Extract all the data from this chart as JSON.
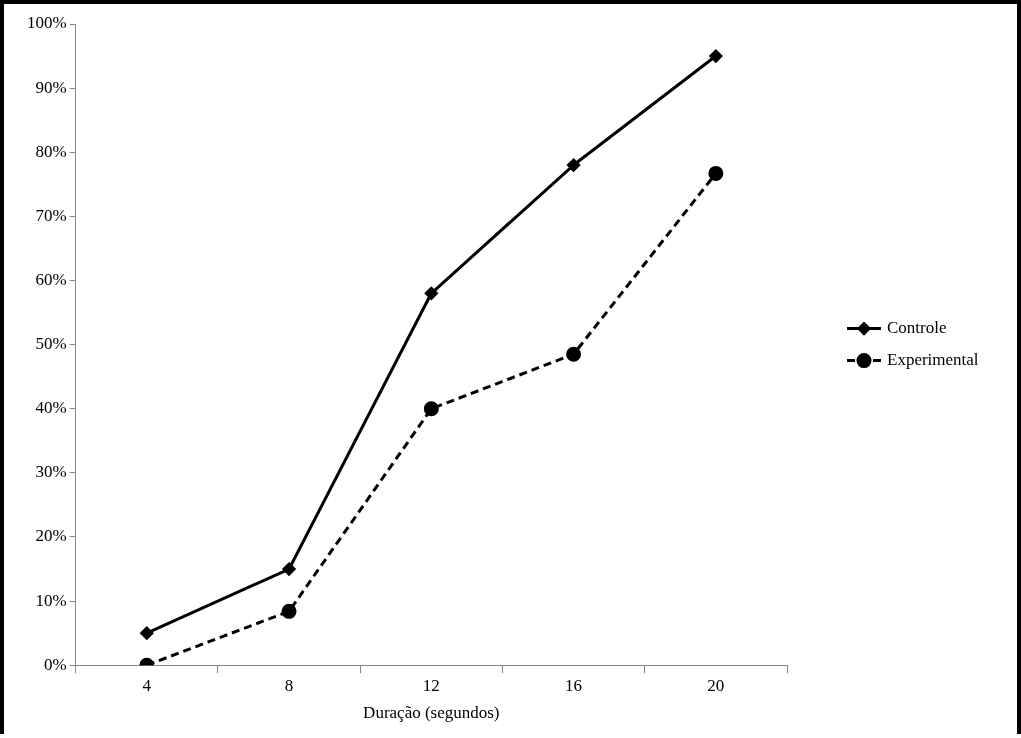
{
  "chart_data": {
    "type": "line",
    "xlabel": "Duração (segundos)",
    "categories": [
      "4",
      "8",
      "12",
      "16",
      "20"
    ],
    "series": [
      {
        "name": "Controle",
        "color": "#000000",
        "marker": "diamond",
        "line_style": "solid",
        "values": [
          5,
          15,
          58,
          78,
          95
        ]
      },
      {
        "name": "Experimental",
        "color": "#000000",
        "marker": "circle",
        "line_style": "dashed",
        "values": [
          0,
          8.4,
          40,
          48.5,
          76.7
        ]
      }
    ],
    "ylim": [
      0,
      100
    ],
    "yticks": [
      {
        "value": 0,
        "label": "0%"
      },
      {
        "value": 10,
        "label": "10%"
      },
      {
        "value": 20,
        "label": "20%"
      },
      {
        "value": 30,
        "label": "30%"
      },
      {
        "value": 40,
        "label": "40%"
      },
      {
        "value": 50,
        "label": "50%"
      },
      {
        "value": 60,
        "label": "60%"
      },
      {
        "value": 70,
        "label": "70%"
      },
      {
        "value": 80,
        "label": "80%"
      },
      {
        "value": 90,
        "label": "90%"
      },
      {
        "value": 100,
        "label": "100%"
      }
    ],
    "grid": false,
    "legend": "right"
  }
}
